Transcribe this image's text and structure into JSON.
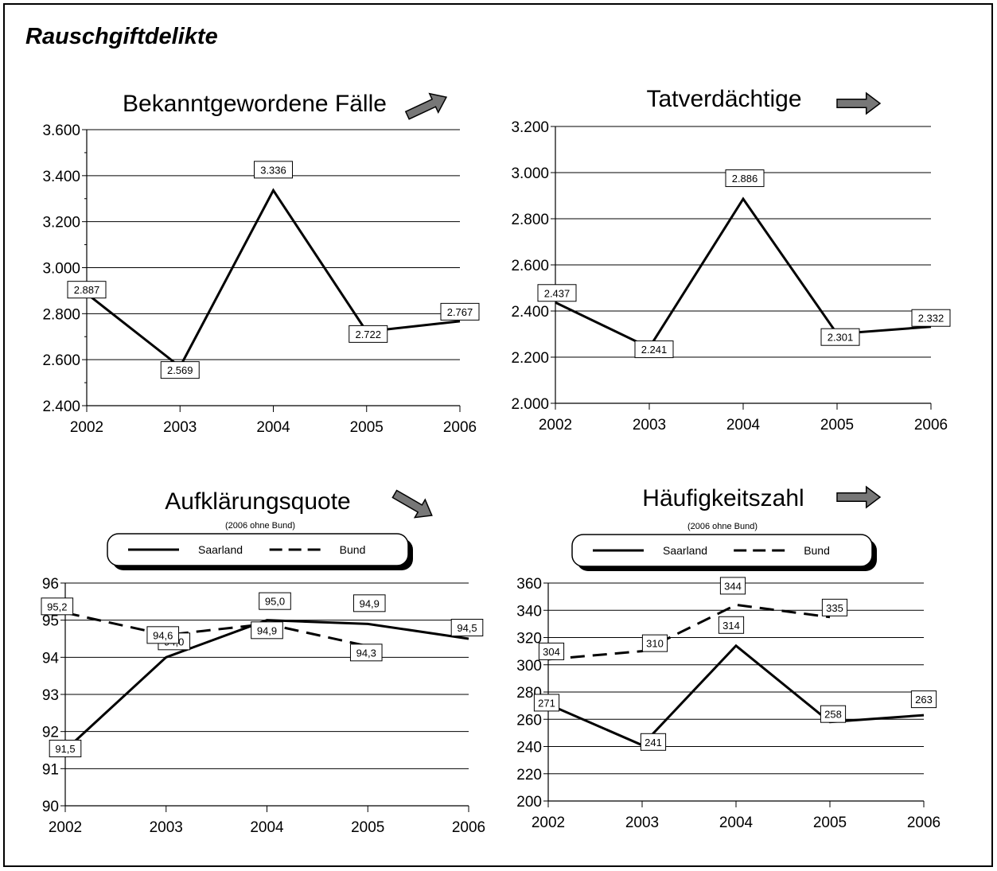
{
  "page": {
    "title": "Rauschgiftdelikte"
  },
  "chart_data": [
    {
      "type": "line",
      "title": "Bekanntgewordene Fälle",
      "x": [
        "2002",
        "2003",
        "2004",
        "2005",
        "2006"
      ],
      "ylim": [
        2400,
        3600
      ],
      "ytick_step": 200,
      "ytick_labels": [
        "2.400",
        "2.600",
        "2.800",
        "3.000",
        "3.200",
        "3.400",
        "3.600"
      ],
      "grid": true,
      "trend_arrow": "up",
      "series": [
        {
          "values": [
            2887,
            2569,
            3336,
            2722,
            2767
          ],
          "labels": [
            "2.887",
            "2.569",
            "3.336",
            "2.722",
            "2.767"
          ],
          "style": "solid"
        }
      ]
    },
    {
      "type": "line",
      "title": "Tatverdächtige",
      "x": [
        "2002",
        "2003",
        "2004",
        "2005",
        "2006"
      ],
      "ylim": [
        2000,
        3200
      ],
      "ytick_step": 200,
      "ytick_labels": [
        "2.000",
        "2.200",
        "2.400",
        "2.600",
        "2.800",
        "3.000",
        "3.200"
      ],
      "grid": true,
      "trend_arrow": "right",
      "series": [
        {
          "values": [
            2437,
            2241,
            2886,
            2301,
            2332
          ],
          "labels": [
            "2.437",
            "2.241",
            "2.886",
            "2.301",
            "2.332"
          ],
          "style": "solid"
        }
      ]
    },
    {
      "type": "line",
      "title": "Aufklärungsquote",
      "subtitle": "(2006 ohne Bund)",
      "x": [
        "2002",
        "2003",
        "2004",
        "2005",
        "2006"
      ],
      "ylim": [
        90,
        96
      ],
      "ytick_step": 1,
      "ytick_labels": [
        "90",
        "91",
        "92",
        "93",
        "94",
        "95",
        "96"
      ],
      "grid": true,
      "legend": "top",
      "trend_arrow": "down",
      "series": [
        {
          "name": "Saarland",
          "values": [
            91.5,
            94.0,
            95.0,
            94.9,
            94.5
          ],
          "labels": [
            "91,5",
            "94,0",
            "95,0",
            "94,9",
            "94,5"
          ],
          "style": "solid"
        },
        {
          "name": "Bund",
          "values": [
            95.2,
            94.6,
            94.9,
            94.3,
            null
          ],
          "labels": [
            "95,2",
            "94,6",
            "94,9",
            "94,3",
            null
          ],
          "style": "dashed"
        }
      ]
    },
    {
      "type": "line",
      "title": "Häufigkeitszahl",
      "subtitle": "(2006 ohne Bund)",
      "x": [
        "2002",
        "2003",
        "2004",
        "2005",
        "2006"
      ],
      "ylim": [
        200,
        360
      ],
      "ytick_step": 20,
      "ytick_labels": [
        "200",
        "220",
        "240",
        "260",
        "280",
        "300",
        "320",
        "340",
        "360"
      ],
      "grid": true,
      "legend": "top",
      "trend_arrow": "right",
      "series": [
        {
          "name": "Saarland",
          "values": [
            271,
            241,
            314,
            258,
            263
          ],
          "labels": [
            "271",
            "241",
            "314",
            "258",
            "263"
          ],
          "style": "solid"
        },
        {
          "name": "Bund",
          "values": [
            304,
            310,
            344,
            335,
            null
          ],
          "labels": [
            "304",
            "310",
            "344",
            "335",
            null
          ],
          "style": "dashed"
        }
      ]
    }
  ]
}
